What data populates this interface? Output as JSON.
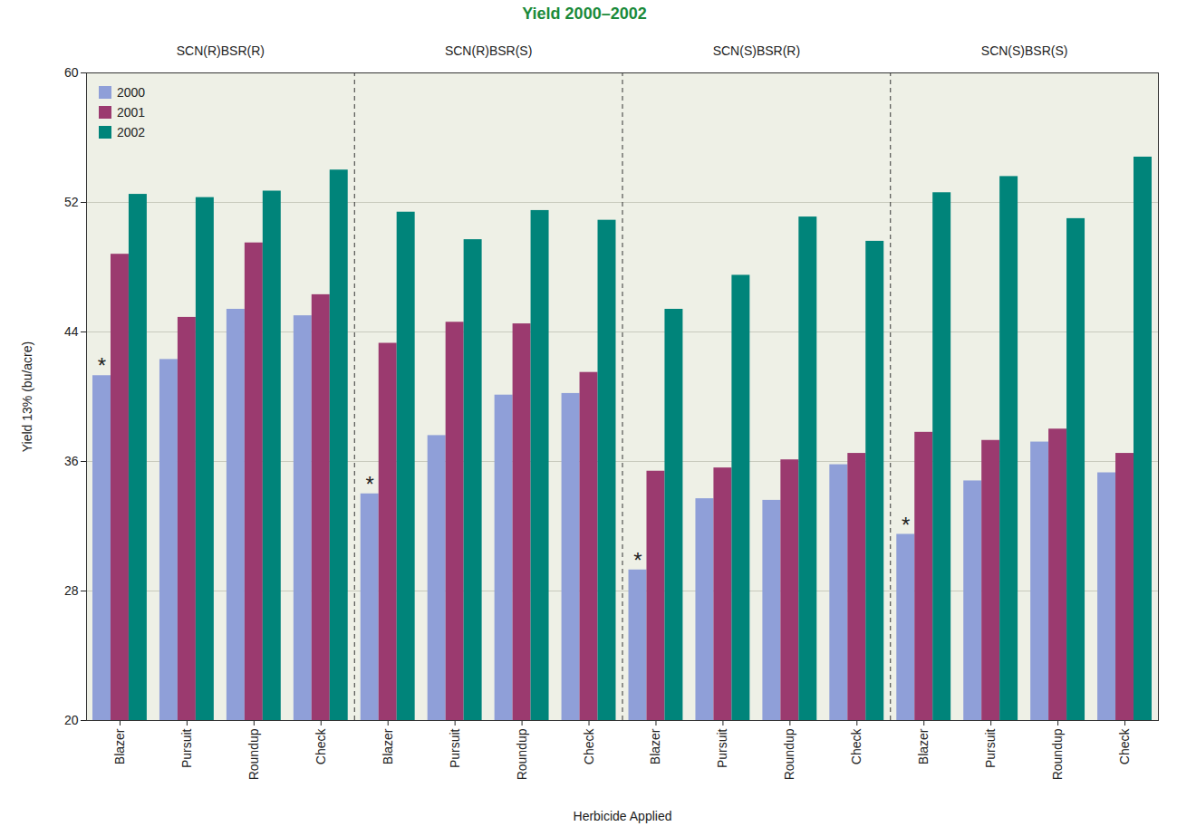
{
  "chart_data": {
    "type": "bar",
    "title": "Yield 2000–2002",
    "x_label": "Herbicide Applied",
    "y_label": "Yield 13% (bu/acre)",
    "groups": [
      "SCN(R)BSR(R)",
      "SCN(R)BSR(S)",
      "SCN(S)BSR(R)",
      "SCN(S)BSR(S)"
    ],
    "categories": [
      "Blazer",
      "Pursuit",
      "Roundup",
      "Check"
    ],
    "series": [
      {
        "name": "2000",
        "color": "#8f9fd8",
        "values": [
          [
            41.3,
            42.3,
            45.4,
            45.0
          ],
          [
            34.0,
            37.6,
            40.1,
            40.2
          ],
          [
            29.3,
            33.7,
            33.6,
            35.8
          ],
          [
            31.5,
            34.8,
            37.2,
            35.3
          ]
        ]
      },
      {
        "name": "2001",
        "color": "#9b3a6f",
        "values": [
          [
            48.8,
            44.9,
            49.5,
            46.3
          ],
          [
            43.3,
            44.6,
            44.5,
            41.5
          ],
          [
            35.4,
            35.6,
            36.1,
            36.5
          ],
          [
            37.8,
            37.3,
            38.0,
            36.5
          ]
        ]
      },
      {
        "name": "2002",
        "color": "#00847a",
        "values": [
          [
            52.5,
            52.3,
            52.7,
            54.0
          ],
          [
            51.4,
            49.7,
            51.5,
            50.9
          ],
          [
            45.4,
            47.5,
            51.1,
            49.6
          ],
          [
            52.6,
            53.6,
            51.0,
            54.8
          ]
        ]
      }
    ],
    "annotations": [
      {
        "group": "SCN(R)BSR(R)",
        "category": "Blazer",
        "series": "2000",
        "text": "*"
      },
      {
        "group": "SCN(R)BSR(S)",
        "category": "Blazer",
        "series": "2000",
        "text": "*"
      },
      {
        "group": "SCN(S)BSR(R)",
        "category": "Blazer",
        "series": "2000",
        "text": "*"
      },
      {
        "group": "SCN(S)BSR(S)",
        "category": "Blazer",
        "series": "2000",
        "text": "*"
      }
    ],
    "ylim": [
      20,
      60
    ],
    "yticks": [
      20,
      28,
      36,
      44,
      52,
      60
    ],
    "grid": true,
    "legend": "top-left"
  }
}
